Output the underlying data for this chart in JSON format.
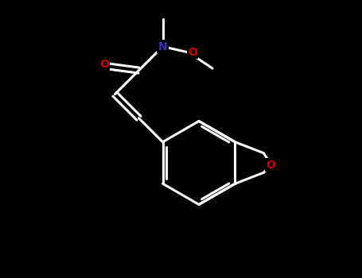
{
  "background_color": "#000000",
  "bond_color": "#ffffff",
  "nitrogen_color": "#3333bb",
  "oxygen_color": "#cc0000",
  "line_width": 2.2,
  "figsize": [
    4.55,
    3.5
  ],
  "dpi": 100,
  "xlim": [
    0,
    9.1
  ],
  "ylim": [
    0,
    7.0
  ]
}
